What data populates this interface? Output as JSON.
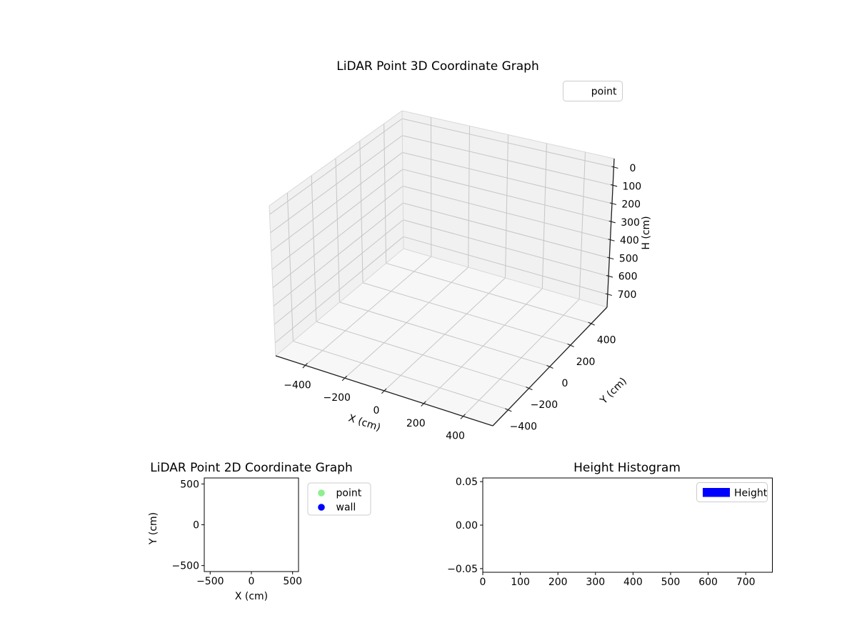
{
  "figure": {
    "background": "#ffffff"
  },
  "chart_data": [
    {
      "id": "lidar_3d",
      "type": "scatter3d",
      "title": "LiDAR Point 3D Coordinate Graph",
      "xlabel": "X (cm)",
      "ylabel": "Y (cm)",
      "zlabel": "H (cm)",
      "xlim": [
        -550,
        550
      ],
      "ylim": [
        -550,
        550
      ],
      "zlim": [
        0,
        700
      ],
      "zaxis_inverted": true,
      "grid": true,
      "xtick_values": [
        -400,
        -200,
        0,
        200,
        400
      ],
      "xtick_labels": [
        "−400",
        "−200",
        "0",
        "200",
        "400"
      ],
      "ytick_values": [
        400,
        200,
        0,
        -200,
        -400
      ],
      "ytick_labels": [
        "400",
        "200",
        "0",
        "−200",
        "−400"
      ],
      "ztick_values": [
        0,
        100,
        200,
        300,
        400,
        500,
        600,
        700
      ],
      "ztick_labels": [
        "0",
        "100",
        "200",
        "300",
        "400",
        "500",
        "600",
        "700"
      ],
      "legend": {
        "location": "upper right",
        "entries": [
          {
            "label": "point",
            "marker": "none"
          }
        ]
      },
      "series": [
        {
          "name": "point",
          "points": []
        }
      ]
    },
    {
      "id": "lidar_2d",
      "type": "scatter",
      "title": "LiDAR Point 2D Coordinate Graph",
      "xlabel": "X (cm)",
      "ylabel": "Y (cm)",
      "xlim": [
        -572,
        572
      ],
      "ylim": [
        -573,
        573
      ],
      "grid": false,
      "xtick_values": [
        -500,
        0,
        500
      ],
      "xtick_labels": [
        "−500",
        "0",
        "500"
      ],
      "ytick_values": [
        500,
        0,
        -500
      ],
      "ytick_labels": [
        "500",
        "0",
        "−500"
      ],
      "legend": {
        "location": "outside right",
        "entries": [
          {
            "label": "point",
            "marker": "dot",
            "color": "#90ee90"
          },
          {
            "label": "wall",
            "marker": "dot",
            "color": "#0000ff"
          }
        ]
      },
      "series": [
        {
          "name": "point",
          "points": []
        },
        {
          "name": "wall",
          "points": []
        }
      ]
    },
    {
      "id": "height_histogram",
      "type": "bar",
      "title": "Height Histogram",
      "xlabel": "",
      "ylabel": "",
      "xlim": [
        0,
        771
      ],
      "ylim": [
        -0.0542,
        0.0542
      ],
      "grid": false,
      "xtick_values": [
        0,
        100,
        200,
        300,
        400,
        500,
        600,
        700
      ],
      "xtick_labels": [
        "0",
        "100",
        "200",
        "300",
        "400",
        "500",
        "600",
        "700"
      ],
      "ytick_values": [
        0.05,
        0.0,
        -0.05
      ],
      "ytick_labels": [
        "0.05",
        "0.00",
        "−0.05"
      ],
      "legend": {
        "location": "upper right",
        "entries": [
          {
            "label": "Height",
            "marker": "patch",
            "color": "#0000ff"
          }
        ]
      },
      "values": []
    }
  ]
}
